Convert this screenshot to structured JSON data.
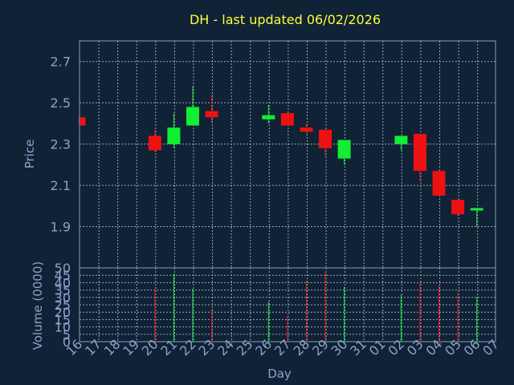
{
  "chart_data": [
    {
      "type": "candlestick",
      "title": "DH - last updated 06/02/2026",
      "ylabel": "Price",
      "ylim": [
        1.7,
        2.8
      ],
      "yticks": [
        1.9,
        2.1,
        2.3,
        2.5,
        2.7
      ],
      "ytick_labels": [
        "1.9",
        "2.1",
        "2.3",
        "2.5",
        "2.7"
      ],
      "grid": true,
      "colors": {
        "up": "#11ee33",
        "down": "#ee1111",
        "background": "#0f2236",
        "title": "#ffff33",
        "axis_text": "#8aa3c8"
      },
      "x": [
        "16",
        "17",
        "18",
        "19",
        "20",
        "21",
        "22",
        "23",
        "24",
        "25",
        "26",
        "27",
        "28",
        "29",
        "30",
        "31",
        "01",
        "02",
        "03",
        "04",
        "05",
        "06",
        "07"
      ],
      "candles": [
        {
          "day": "16",
          "open": 2.43,
          "high": 2.43,
          "low": 2.39,
          "close": 2.39
        },
        {
          "day": "20",
          "open": 2.34,
          "high": 2.37,
          "low": 2.26,
          "close": 2.27
        },
        {
          "day": "21",
          "open": 2.3,
          "high": 2.45,
          "low": 2.28,
          "close": 2.38
        },
        {
          "day": "22",
          "open": 2.39,
          "high": 2.58,
          "low": 2.39,
          "close": 2.48
        },
        {
          "day": "23",
          "open": 2.46,
          "high": 2.54,
          "low": 2.4,
          "close": 2.43
        },
        {
          "day": "26",
          "open": 2.42,
          "high": 2.49,
          "low": 2.4,
          "close": 2.44
        },
        {
          "day": "27",
          "open": 2.45,
          "high": 2.45,
          "low": 2.39,
          "close": 2.39
        },
        {
          "day": "28",
          "open": 2.38,
          "high": 2.4,
          "low": 2.35,
          "close": 2.36
        },
        {
          "day": "29",
          "open": 2.37,
          "high": 2.37,
          "low": 2.24,
          "close": 2.28
        },
        {
          "day": "30",
          "open": 2.23,
          "high": 2.32,
          "low": 2.2,
          "close": 2.32
        },
        {
          "day": "02",
          "open": 2.3,
          "high": 2.34,
          "low": 2.27,
          "close": 2.34
        },
        {
          "day": "03",
          "open": 2.35,
          "high": 2.35,
          "low": 2.12,
          "close": 2.17
        },
        {
          "day": "04",
          "open": 2.17,
          "high": 2.17,
          "low": 2.05,
          "close": 2.05
        },
        {
          "day": "05",
          "open": 2.03,
          "high": 2.03,
          "low": 1.95,
          "close": 1.96
        },
        {
          "day": "06",
          "open": 1.98,
          "high": 1.99,
          "low": 1.9,
          "close": 1.99
        }
      ]
    },
    {
      "type": "bar",
      "ylabel": "Volume (0000)",
      "xlabel": "Day",
      "ylim": [
        0,
        50
      ],
      "yticks": [
        0,
        5,
        10,
        15,
        20,
        25,
        30,
        35,
        40,
        45,
        50
      ],
      "ytick_labels": [
        "0",
        "5",
        "10",
        "15",
        "20",
        "25",
        "30",
        "35",
        "40",
        "45",
        "50"
      ],
      "grid": true,
      "categories": [
        "16",
        "17",
        "18",
        "19",
        "20",
        "21",
        "22",
        "23",
        "24",
        "25",
        "26",
        "27",
        "28",
        "29",
        "30",
        "31",
        "01",
        "02",
        "03",
        "04",
        "05",
        "06",
        "07"
      ],
      "bars": [
        {
          "day": "16",
          "value": 0,
          "direction": "down"
        },
        {
          "day": "20",
          "value": 36,
          "direction": "down"
        },
        {
          "day": "21",
          "value": 46,
          "direction": "up"
        },
        {
          "day": "22",
          "value": 36,
          "direction": "up"
        },
        {
          "day": "23",
          "value": 22,
          "direction": "down"
        },
        {
          "day": "26",
          "value": 27,
          "direction": "up"
        },
        {
          "day": "27",
          "value": 17,
          "direction": "down"
        },
        {
          "day": "28",
          "value": 41,
          "direction": "down"
        },
        {
          "day": "29",
          "value": 47,
          "direction": "down"
        },
        {
          "day": "30",
          "value": 37,
          "direction": "up"
        },
        {
          "day": "02",
          "value": 32,
          "direction": "up"
        },
        {
          "day": "03",
          "value": 40,
          "direction": "down"
        },
        {
          "day": "04",
          "value": 38,
          "direction": "down"
        },
        {
          "day": "05",
          "value": 33,
          "direction": "down"
        },
        {
          "day": "06",
          "value": 30,
          "direction": "up"
        }
      ]
    }
  ]
}
